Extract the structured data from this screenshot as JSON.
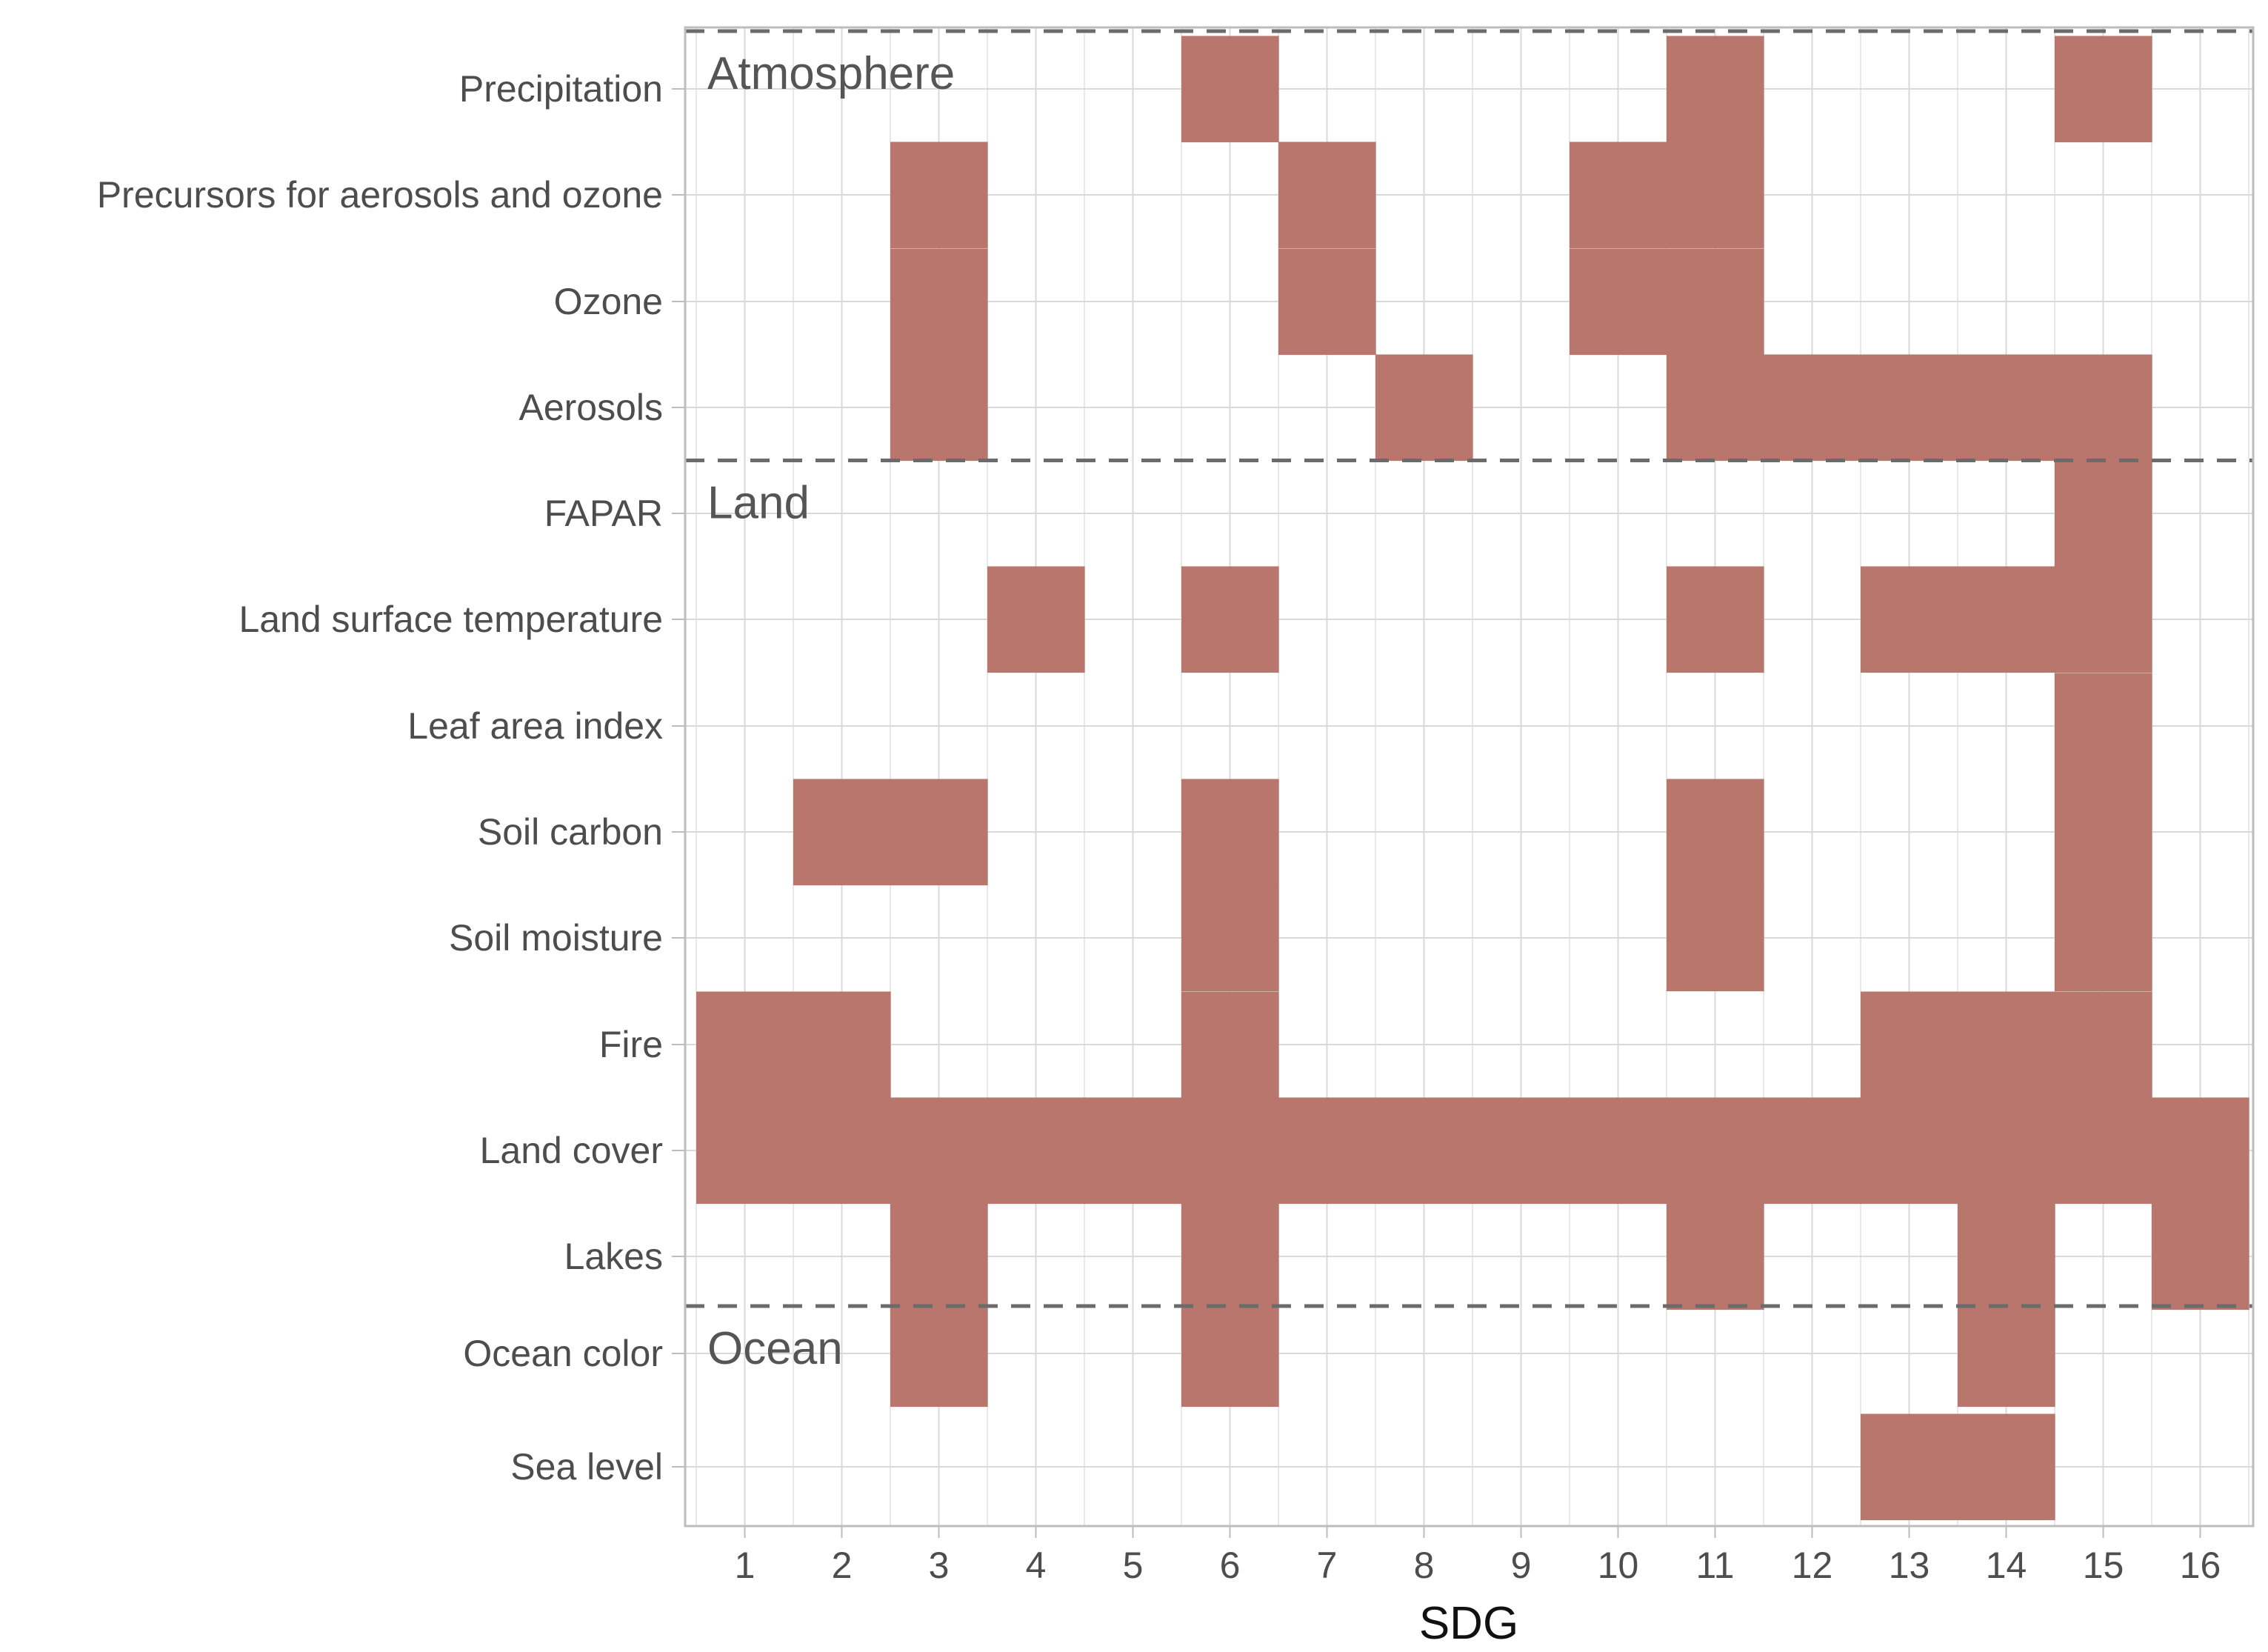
{
  "chart_data": {
    "type": "heatmap",
    "title": "",
    "xlabel": "SDG",
    "ylabel": "",
    "x_categories": [
      "1",
      "2",
      "3",
      "4",
      "5",
      "6",
      "7",
      "8",
      "9",
      "10",
      "11",
      "12",
      "13",
      "14",
      "15",
      "16"
    ],
    "y_categories": [
      "Precipitation",
      "Precursors for aerosols and ozone",
      "Ozone",
      "Aerosols",
      "FAPAR",
      "Land surface temperature",
      "Leaf area index",
      "Soil carbon",
      "Soil moisture",
      "Fire",
      "Land cover",
      "Lakes",
      "Ocean color",
      "Sea level"
    ],
    "groups": [
      {
        "label": "Atmosphere",
        "first_row": "Precipitation"
      },
      {
        "label": "Land",
        "first_row": "FAPAR"
      },
      {
        "label": "Ocean",
        "first_row": "Ocean color"
      }
    ],
    "cells": [
      {
        "y": "Precipitation",
        "x": [
          6,
          11,
          15
        ]
      },
      {
        "y": "Precursors for aerosols and ozone",
        "x": [
          3,
          7,
          10,
          11
        ]
      },
      {
        "y": "Ozone",
        "x": [
          3,
          7,
          10,
          11
        ]
      },
      {
        "y": "Aerosols",
        "x": [
          3,
          8,
          11,
          12,
          13,
          14,
          15
        ]
      },
      {
        "y": "FAPAR",
        "x": [
          15
        ]
      },
      {
        "y": "Land surface temperature",
        "x": [
          4,
          6,
          11,
          13,
          14,
          15
        ]
      },
      {
        "y": "Leaf area index",
        "x": [
          15
        ]
      },
      {
        "y": "Soil carbon",
        "x": [
          2,
          3,
          6,
          11,
          15
        ]
      },
      {
        "y": "Soil moisture",
        "x": [
          6,
          11,
          15
        ]
      },
      {
        "y": "Fire",
        "x": [
          1,
          2,
          6,
          13,
          14,
          15
        ]
      },
      {
        "y": "Land cover",
        "x": [
          1,
          2,
          3,
          4,
          5,
          6,
          7,
          8,
          9,
          10,
          11,
          12,
          13,
          14,
          15,
          16
        ]
      },
      {
        "y": "Lakes",
        "x": [
          3,
          6,
          11,
          14,
          16
        ]
      },
      {
        "y": "Ocean color",
        "x": [
          3,
          6,
          14
        ]
      },
      {
        "y": "Sea level",
        "x": [
          13,
          14
        ]
      }
    ],
    "cell_color": "#b8766d",
    "grid": true,
    "legend": "none"
  }
}
